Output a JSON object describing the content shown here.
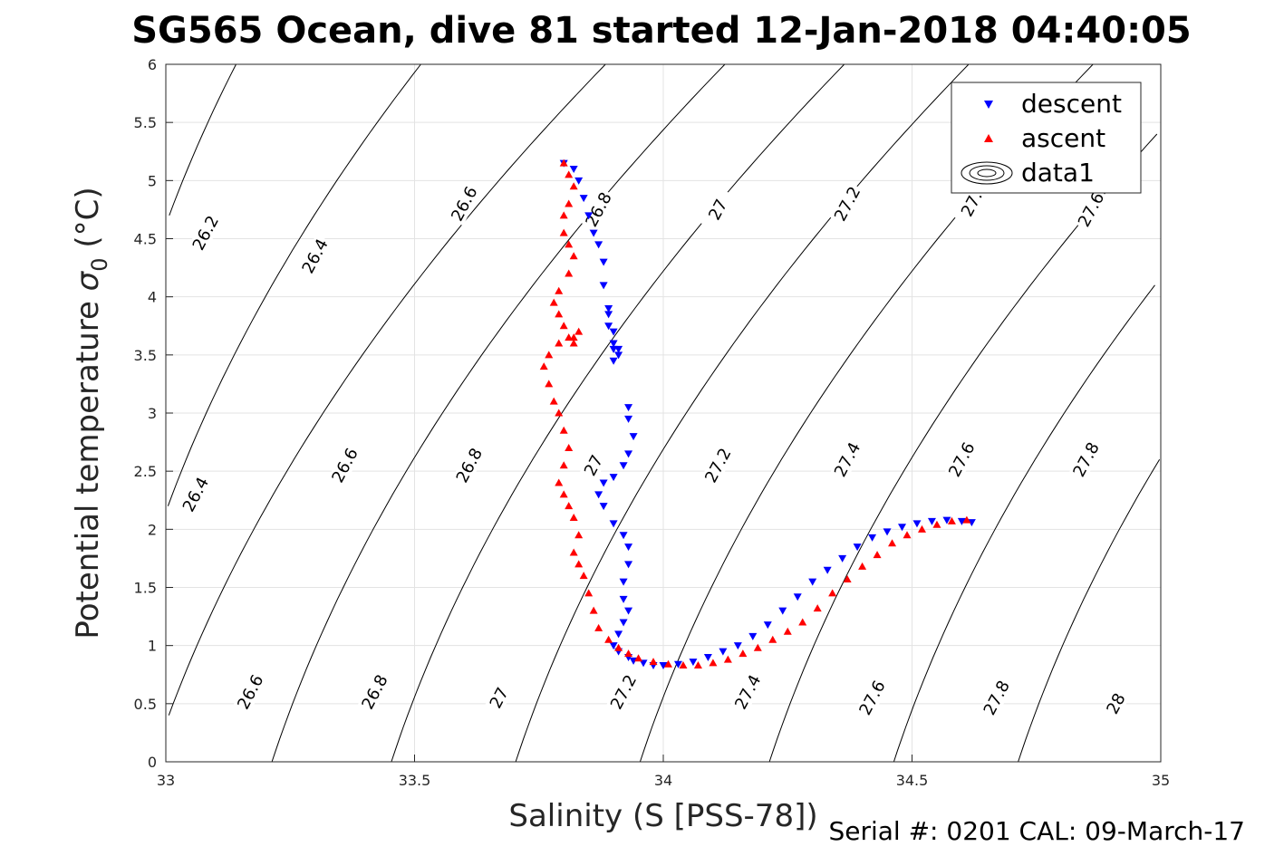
{
  "chart_data": {
    "type": "scatter",
    "title": "SG565 Ocean, dive 81 started 12-Jan-2018 04:40:05",
    "xlabel": "Salinity (S [PSS-78])",
    "ylabel_main": "Potential temperature ",
    "ylabel_sigma": "σ",
    "ylabel_sub": "0",
    "ylabel_unit": " (°C)",
    "xlim": [
      33,
      35
    ],
    "ylim": [
      0,
      6
    ],
    "xticks": [
      "33",
      "33.5",
      "34",
      "34.5",
      "35"
    ],
    "yticks": [
      "0",
      "0.5",
      "1",
      "1.5",
      "2",
      "2.5",
      "3",
      "3.5",
      "4",
      "4.5",
      "5",
      "5.5",
      "6"
    ],
    "grid": true,
    "legend_position": "top-right",
    "legend": [
      {
        "label": "descent",
        "marker": "triangle-down",
        "color": "#0000ff"
      },
      {
        "label": "ascent",
        "marker": "triangle-up",
        "color": "#ff0000"
      },
      {
        "label": "data1",
        "marker": "contour",
        "color": "#000000"
      }
    ],
    "contours": [
      {
        "level": 26.2,
        "label": "26.2",
        "anchor": [
          33.0,
          4.62
        ]
      },
      {
        "level": 26.4,
        "label": "26.4",
        "anchor": [
          33.0,
          2.15
        ]
      },
      {
        "level": 26.6,
        "label": "26.6",
        "anchor": [
          33.0,
          0.33
        ]
      },
      {
        "level": 26.8,
        "label": "26.8",
        "anchor": [
          33.24,
          0.33
        ]
      },
      {
        "level": 27.0,
        "label": "27",
        "anchor": [
          33.48,
          0.33
        ]
      },
      {
        "level": 27.2,
        "label": "27.2",
        "anchor": [
          33.73,
          0.33
        ]
      },
      {
        "level": 27.4,
        "label": "27.4",
        "anchor": [
          33.98,
          0.33
        ]
      },
      {
        "level": 27.6,
        "label": "27.6",
        "anchor": [
          34.24,
          0.33
        ]
      },
      {
        "level": 27.8,
        "label": "27.8",
        "anchor": [
          34.49,
          0.33
        ]
      },
      {
        "level": 28.0,
        "label": "28",
        "anchor": [
          34.74,
          0.33
        ]
      }
    ],
    "contour_labels": [
      {
        "text": "26.2",
        "x": 33.08,
        "y": 4.55
      },
      {
        "text": "26.4",
        "x": 33.3,
        "y": 4.35
      },
      {
        "text": "26.6",
        "x": 33.6,
        "y": 4.8
      },
      {
        "text": "26.8",
        "x": 33.87,
        "y": 4.75
      },
      {
        "text": "27",
        "x": 34.11,
        "y": 4.75
      },
      {
        "text": "27.2",
        "x": 34.37,
        "y": 4.8
      },
      {
        "text": "27.",
        "x": 34.62,
        "y": 4.8
      },
      {
        "text": "27.6",
        "x": 34.86,
        "y": 4.75
      },
      {
        "text": "26.4",
        "x": 33.06,
        "y": 2.3
      },
      {
        "text": "26.6",
        "x": 33.36,
        "y": 2.55
      },
      {
        "text": "26.8",
        "x": 33.61,
        "y": 2.55
      },
      {
        "text": "27",
        "x": 33.86,
        "y": 2.55
      },
      {
        "text": "27.2",
        "x": 34.11,
        "y": 2.55
      },
      {
        "text": "27.4",
        "x": 34.37,
        "y": 2.6
      },
      {
        "text": "27.6",
        "x": 34.6,
        "y": 2.6
      },
      {
        "text": "27.8",
        "x": 34.85,
        "y": 2.6
      },
      {
        "text": "26.6",
        "x": 33.17,
        "y": 0.6
      },
      {
        "text": "26.8",
        "x": 33.42,
        "y": 0.6
      },
      {
        "text": "27",
        "x": 33.67,
        "y": 0.55
      },
      {
        "text": "27.2",
        "x": 33.92,
        "y": 0.6
      },
      {
        "text": "27.4",
        "x": 34.17,
        "y": 0.6
      },
      {
        "text": "27.6",
        "x": 34.42,
        "y": 0.55
      },
      {
        "text": "27.8",
        "x": 34.67,
        "y": 0.55
      },
      {
        "text": "28",
        "x": 34.91,
        "y": 0.5
      }
    ],
    "series": [
      {
        "name": "descent",
        "color": "#0000ff",
        "marker": "triangle-down",
        "x": [
          33.8,
          33.82,
          33.83,
          33.84,
          33.85,
          33.86,
          33.87,
          33.88,
          33.88,
          33.89,
          33.89,
          33.9,
          33.9,
          33.91,
          33.9,
          33.89,
          33.9,
          33.91,
          33.93,
          33.93,
          33.94,
          33.93,
          33.92,
          33.9,
          33.88,
          33.87,
          33.88,
          33.9,
          33.92,
          33.93,
          33.93,
          33.92,
          33.92,
          33.93,
          33.92,
          33.91,
          33.9,
          33.91,
          33.93,
          33.94,
          33.96,
          33.98,
          34.0,
          34.03,
          34.06,
          34.09,
          34.12,
          34.15,
          34.18,
          34.21,
          34.24,
          34.27,
          34.3,
          34.33,
          34.36,
          34.39,
          34.42,
          34.45,
          34.48,
          34.51,
          34.54,
          34.57,
          34.6,
          34.62
        ],
        "y": [
          5.15,
          5.1,
          5.0,
          4.85,
          4.7,
          4.55,
          4.45,
          4.3,
          4.1,
          3.9,
          3.75,
          3.6,
          3.45,
          3.55,
          3.7,
          3.85,
          3.55,
          3.5,
          3.05,
          2.95,
          2.8,
          2.65,
          2.55,
          2.45,
          2.4,
          2.3,
          2.2,
          2.05,
          1.95,
          1.85,
          1.7,
          1.55,
          1.4,
          1.3,
          1.2,
          1.1,
          1.0,
          0.95,
          0.9,
          0.87,
          0.85,
          0.83,
          0.83,
          0.84,
          0.86,
          0.9,
          0.95,
          1.0,
          1.08,
          1.18,
          1.3,
          1.42,
          1.55,
          1.65,
          1.75,
          1.85,
          1.93,
          1.98,
          2.02,
          2.05,
          2.07,
          2.08,
          2.07,
          2.06
        ]
      },
      {
        "name": "ascent",
        "color": "#ff0000",
        "marker": "triangle-up",
        "x": [
          33.8,
          33.81,
          33.82,
          33.81,
          33.8,
          33.8,
          33.81,
          33.82,
          33.81,
          33.79,
          33.78,
          33.79,
          33.8,
          33.81,
          33.82,
          33.83,
          33.82,
          33.79,
          33.77,
          33.76,
          33.77,
          33.78,
          33.79,
          33.8,
          33.81,
          33.8,
          33.79,
          33.8,
          33.81,
          33.82,
          33.83,
          33.82,
          33.83,
          33.84,
          33.85,
          33.86,
          33.87,
          33.89,
          33.91,
          33.93,
          33.95,
          33.98,
          34.01,
          34.04,
          34.07,
          34.1,
          34.13,
          34.16,
          34.19,
          34.22,
          34.25,
          34.28,
          34.31,
          34.34,
          34.37,
          34.4,
          34.43,
          34.46,
          34.49,
          34.52,
          34.55,
          34.58,
          34.61
        ],
        "y": [
          5.15,
          5.05,
          4.95,
          4.8,
          4.7,
          4.55,
          4.45,
          4.35,
          4.2,
          4.05,
          3.95,
          3.85,
          3.75,
          3.65,
          3.65,
          3.7,
          3.6,
          3.6,
          3.5,
          3.4,
          3.25,
          3.1,
          3.0,
          2.85,
          2.7,
          2.55,
          2.4,
          2.3,
          2.2,
          2.1,
          1.95,
          1.8,
          1.7,
          1.6,
          1.45,
          1.3,
          1.15,
          1.05,
          0.98,
          0.93,
          0.89,
          0.86,
          0.84,
          0.83,
          0.83,
          0.85,
          0.88,
          0.93,
          0.98,
          1.05,
          1.12,
          1.2,
          1.32,
          1.45,
          1.57,
          1.68,
          1.78,
          1.88,
          1.95,
          2.0,
          2.04,
          2.07,
          2.08
        ]
      }
    ]
  },
  "footer": {
    "text": "Serial #: 0201  CAL: 09-March-17"
  }
}
